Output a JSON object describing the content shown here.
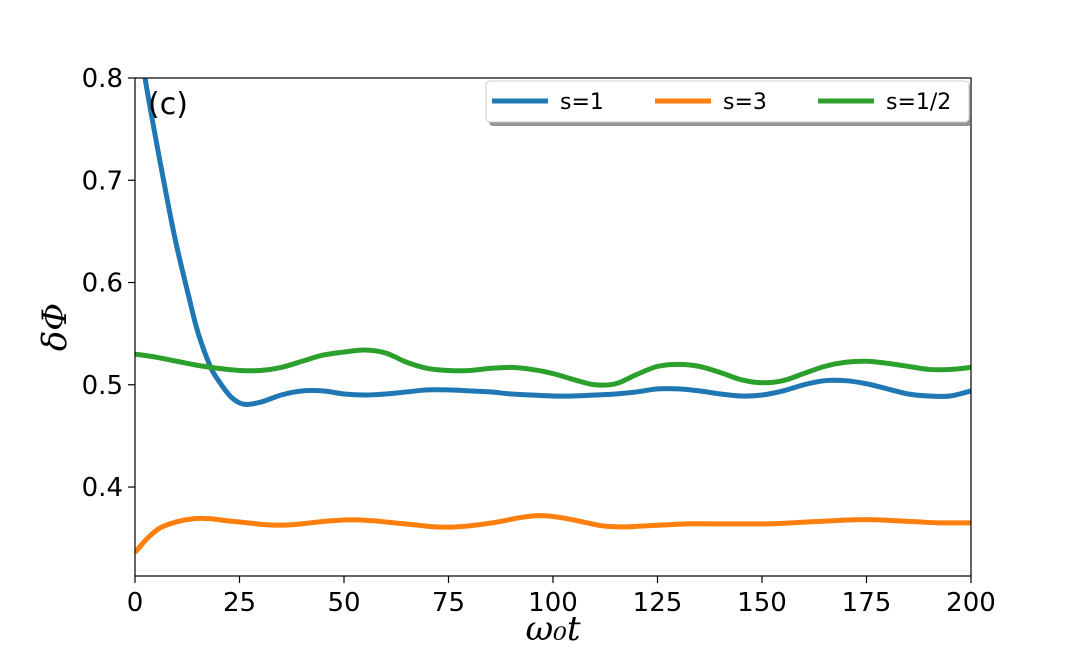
{
  "chart_data": {
    "type": "line",
    "panel_label": "(c)",
    "xlabel": "ω₀t",
    "ylabel": "δΦ",
    "xlim": [
      0,
      200
    ],
    "ylim": [
      0.313,
      0.8
    ],
    "xticks": [
      0,
      25,
      50,
      75,
      100,
      125,
      150,
      175,
      200
    ],
    "xtick_labels": [
      "0",
      "25",
      "50",
      "75",
      "100",
      "125",
      "150",
      "175",
      "200"
    ],
    "yticks": [
      0.4,
      0.5,
      0.6,
      0.7,
      0.8
    ],
    "ytick_labels": [
      "0.4",
      "0.5",
      "0.6",
      "0.7",
      "0.8"
    ],
    "grid": false,
    "legend_position": "top-right",
    "series": [
      {
        "name": "s=1",
        "color": "#1f77b4",
        "x": [
          0,
          2,
          5,
          8,
          10,
          13,
          15,
          18,
          20,
          23,
          26,
          30,
          35,
          40,
          45,
          50,
          55,
          60,
          65,
          70,
          75,
          80,
          85,
          90,
          95,
          100,
          105,
          110,
          115,
          120,
          125,
          130,
          135,
          140,
          145,
          150,
          155,
          160,
          165,
          170,
          175,
          180,
          185,
          190,
          195,
          200
        ],
        "y": [
          0.87,
          0.81,
          0.74,
          0.675,
          0.635,
          0.584,
          0.552,
          0.518,
          0.504,
          0.488,
          0.481,
          0.483,
          0.49,
          0.494,
          0.494,
          0.491,
          0.49,
          0.491,
          0.493,
          0.495,
          0.495,
          0.494,
          0.493,
          0.491,
          0.49,
          0.489,
          0.489,
          0.49,
          0.491,
          0.493,
          0.496,
          0.496,
          0.494,
          0.491,
          0.489,
          0.49,
          0.494,
          0.5,
          0.504,
          0.504,
          0.501,
          0.496,
          0.491,
          0.489,
          0.489,
          0.494
        ]
      },
      {
        "name": "s=3",
        "color": "#ff7f0e",
        "x": [
          0,
          3,
          6,
          10,
          14,
          18,
          22,
          27,
          32,
          37,
          42,
          47,
          52,
          57,
          62,
          67,
          72,
          77,
          82,
          87,
          92,
          97,
          102,
          107,
          112,
          117,
          122,
          127,
          132,
          137,
          142,
          147,
          152,
          157,
          162,
          167,
          172,
          177,
          182,
          187,
          192,
          196,
          200
        ],
        "y": [
          0.336,
          0.35,
          0.36,
          0.366,
          0.369,
          0.369,
          0.367,
          0.365,
          0.363,
          0.363,
          0.365,
          0.367,
          0.368,
          0.367,
          0.365,
          0.363,
          0.361,
          0.361,
          0.363,
          0.366,
          0.37,
          0.372,
          0.37,
          0.366,
          0.362,
          0.361,
          0.362,
          0.363,
          0.364,
          0.364,
          0.364,
          0.364,
          0.364,
          0.365,
          0.366,
          0.367,
          0.368,
          0.368,
          0.367,
          0.366,
          0.365,
          0.365,
          0.365
        ]
      },
      {
        "name": "s=1/2",
        "color": "#2ca02c",
        "x": [
          0,
          5,
          10,
          15,
          20,
          25,
          30,
          35,
          40,
          45,
          50,
          55,
          60,
          65,
          70,
          75,
          80,
          85,
          90,
          95,
          100,
          105,
          110,
          115,
          120,
          125,
          130,
          135,
          140,
          145,
          150,
          155,
          160,
          165,
          170,
          175,
          180,
          185,
          190,
          195,
          200
        ],
        "y": [
          0.53,
          0.527,
          0.523,
          0.519,
          0.516,
          0.514,
          0.514,
          0.517,
          0.523,
          0.529,
          0.532,
          0.534,
          0.531,
          0.522,
          0.516,
          0.514,
          0.514,
          0.516,
          0.517,
          0.515,
          0.511,
          0.505,
          0.5,
          0.501,
          0.51,
          0.518,
          0.52,
          0.518,
          0.512,
          0.505,
          0.502,
          0.504,
          0.511,
          0.518,
          0.522,
          0.523,
          0.521,
          0.518,
          0.515,
          0.515,
          0.517
        ]
      }
    ]
  }
}
